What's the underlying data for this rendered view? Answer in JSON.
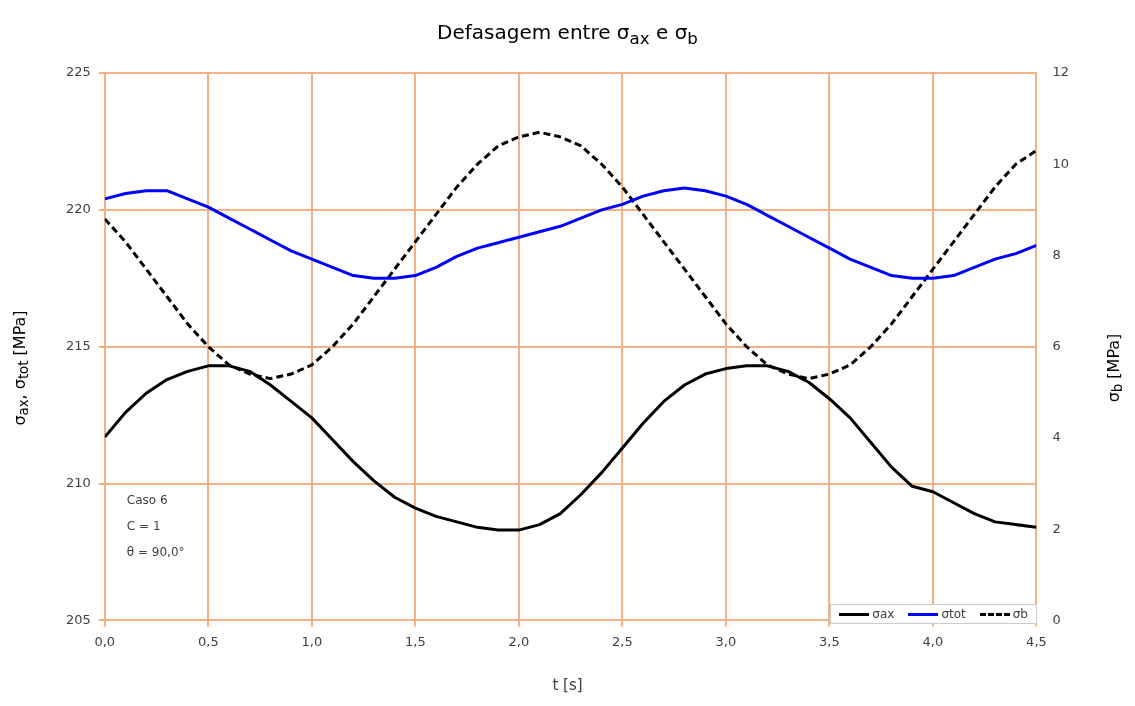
{
  "chart_data": {
    "type": "line",
    "title": "Defasagem entre σ$_{ax}$ e σ$_{b}$",
    "xlabel": "t [s]",
    "ylabel": "σ$_{ax}$, σ$_{tot}$ [MPa]",
    "y2label": "σ$_{b}$ [MPa]",
    "x": [
      0,
      0.1,
      0.2,
      0.3,
      0.4,
      0.5,
      0.6,
      0.7,
      0.8,
      0.9,
      1.0,
      1.1,
      1.2,
      1.3,
      1.4,
      1.5,
      1.6,
      1.7,
      1.8,
      1.9,
      2.0,
      2.1,
      2.2,
      2.3,
      2.4,
      2.5,
      2.6,
      2.7,
      2.8,
      2.9,
      3.0,
      3.1,
      3.2,
      3.3,
      3.4,
      3.5,
      3.6,
      3.7,
      3.8,
      3.9,
      4.0,
      4.1,
      4.2,
      4.3,
      4.4,
      4.5
    ],
    "xlim": [
      0,
      4.5
    ],
    "xticks": [
      {
        "value": 0,
        "label": "0,0"
      },
      {
        "value": 0.5,
        "label": "0,5"
      },
      {
        "value": 1,
        "label": "1,0"
      },
      {
        "value": 1.5,
        "label": "1,5"
      },
      {
        "value": 2,
        "label": "2,0"
      },
      {
        "value": 2.5,
        "label": "2,5"
      },
      {
        "value": 3,
        "label": "3,0"
      },
      {
        "value": 3.5,
        "label": "3,5"
      },
      {
        "value": 4,
        "label": "4,0"
      },
      {
        "value": 4.5,
        "label": "4,5"
      }
    ],
    "ylim": [
      205,
      225
    ],
    "yticks": [
      205,
      210,
      215,
      220,
      225
    ],
    "y2lim": [
      0,
      12
    ],
    "y2ticks": [
      0,
      2,
      4,
      6,
      8,
      10,
      12
    ],
    "grid": true,
    "legend": "bottom right",
    "marker": "none",
    "annotations": [
      "Caso 6",
      "C = 1",
      "θ = 90,0°"
    ],
    "series": [
      {
        "name": "σax",
        "color": "#000000",
        "values": [
          211.7,
          212.6,
          213.3,
          213.8,
          214.1,
          214.3,
          214.3,
          214.1,
          213.6,
          213.0,
          212.4,
          211.6,
          210.8,
          210.1,
          209.5,
          209.1,
          208.8,
          208.6,
          208.4,
          208.3,
          208.3,
          208.5,
          208.9,
          209.6,
          210.4,
          211.3,
          212.2,
          213.0,
          213.6,
          214.0,
          214.2,
          214.3,
          214.3,
          214.1,
          213.7,
          213.1,
          212.4,
          211.5,
          210.6,
          209.9,
          209.7,
          209.3,
          208.9,
          208.6,
          208.5,
          208.4
        ]
      },
      {
        "name": "σtot",
        "color": "#0000ff",
        "values": [
          220.4,
          220.6,
          220.7,
          220.7,
          220.4,
          220.1,
          219.7,
          219.3,
          218.9,
          218.5,
          218.2,
          217.9,
          217.6,
          217.5,
          217.5,
          217.6,
          217.9,
          218.3,
          218.6,
          218.8,
          219.0,
          219.2,
          219.4,
          219.7,
          220.0,
          220.2,
          220.5,
          220.7,
          220.8,
          220.7,
          220.5,
          220.2,
          219.8,
          219.4,
          219.0,
          218.6,
          218.2,
          217.9,
          217.6,
          217.5,
          217.5,
          217.6,
          217.9,
          218.2,
          218.4,
          218.7
        ]
      },
      {
        "name": "σb",
        "color": "#000000",
        "axis": "y2",
        "line_style": "dashed",
        "values": [
          8.8,
          8.3,
          7.7,
          7.1,
          6.5,
          6.0,
          5.6,
          5.4,
          5.3,
          5.4,
          5.6,
          6.0,
          6.5,
          7.1,
          7.7,
          8.3,
          8.9,
          9.5,
          10.0,
          10.4,
          10.6,
          10.7,
          10.6,
          10.4,
          10.0,
          9.5,
          8.9,
          8.3,
          7.7,
          7.1,
          6.5,
          6.0,
          5.6,
          5.4,
          5.3,
          5.4,
          5.6,
          6.0,
          6.5,
          7.1,
          7.7,
          8.3,
          8.9,
          9.5,
          10.0,
          10.3
        ]
      }
    ]
  }
}
